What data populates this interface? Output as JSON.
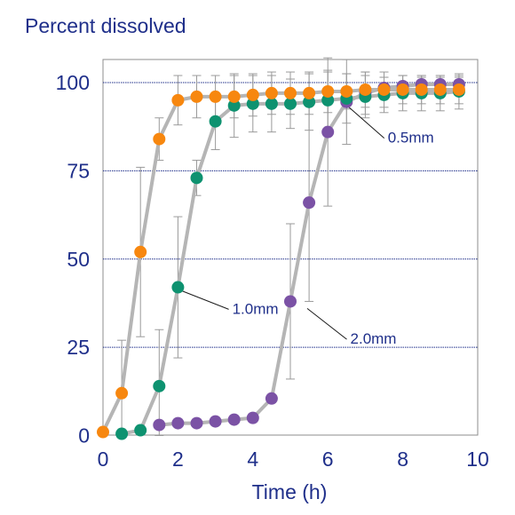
{
  "chart_data": {
    "type": "line",
    "ylabel": "Percent dissolved",
    "xlabel": "Time (h)",
    "xlim": [
      0,
      10
    ],
    "ylim": [
      0,
      105
    ],
    "xticks": [
      0,
      2,
      4,
      6,
      8,
      10
    ],
    "yticks": [
      0,
      25,
      50,
      75,
      100
    ],
    "grid": "horizontal dotted",
    "colors": {
      "axis_text": "#1f2f8a",
      "gridline": "#1f2f8a",
      "connector": "#b5b5b5",
      "errorbar": "#9a9a9a",
      "series_0_5mm": "#f7870f",
      "series_1_0mm": "#0e9270",
      "series_2_0mm": "#7b52a5"
    },
    "series": [
      {
        "name": "0.5mm",
        "color": "#f7870f",
        "x": [
          0,
          0.5,
          1,
          1.5,
          2,
          2.5,
          3,
          3.5,
          4,
          4.5,
          5,
          5.5,
          6,
          6.5,
          7,
          7.5,
          8,
          8.5,
          9,
          9.5
        ],
        "y": [
          1,
          12,
          52,
          84,
          95,
          96,
          96,
          96,
          96.5,
          97,
          97,
          97,
          97.5,
          97.5,
          98,
          98,
          98,
          98,
          98,
          98
        ],
        "error": [
          0,
          15,
          24,
          6,
          7,
          6,
          6,
          6,
          6,
          6,
          6,
          6,
          6,
          5,
          5,
          5,
          4,
          4,
          4,
          4
        ]
      },
      {
        "name": "1.0mm",
        "color": "#0e9270",
        "x": [
          0.5,
          1,
          1.5,
          2,
          2.5,
          3,
          3.5,
          4,
          4.5,
          5,
          5.5,
          6,
          6.5,
          7,
          7.5,
          8,
          8.5,
          9,
          9.5
        ],
        "y": [
          0.5,
          1.5,
          14,
          42,
          73,
          89,
          93.5,
          94,
          94,
          94,
          94.5,
          95,
          95.5,
          96,
          96.5,
          97,
          97,
          97,
          97.5
        ],
        "error": [
          0,
          1,
          16,
          20,
          5,
          8,
          9,
          8,
          8,
          7,
          8,
          8,
          7,
          6,
          5,
          5,
          5,
          5,
          5
        ]
      },
      {
        "name": "2.0mm",
        "color": "#7b52a5",
        "x": [
          1.5,
          2,
          2.5,
          3,
          3.5,
          4,
          4.5,
          5,
          5.5,
          6,
          6.5,
          7,
          7.5,
          8,
          8.5,
          9,
          9.5
        ],
        "y": [
          3,
          3.5,
          3.5,
          4,
          4.5,
          5,
          10.5,
          38,
          66,
          86,
          94.5,
          97,
          98.5,
          99,
          99.5,
          99.5,
          99.5
        ],
        "error": [
          0,
          0,
          0,
          0,
          0,
          0,
          0,
          22,
          28,
          21,
          12,
          6,
          3,
          3,
          2,
          2,
          2
        ]
      }
    ],
    "annotations": [
      {
        "text": "0.5mm",
        "x": 7.6,
        "y": 83,
        "point": [
          6.35,
          95
        ]
      },
      {
        "text": "1.0mm",
        "x": 3.45,
        "y": 34.5,
        "point": [
          2.1,
          41
        ]
      },
      {
        "text": "2.0mm",
        "x": 6.6,
        "y": 26,
        "point": [
          5.45,
          36
        ]
      }
    ]
  }
}
